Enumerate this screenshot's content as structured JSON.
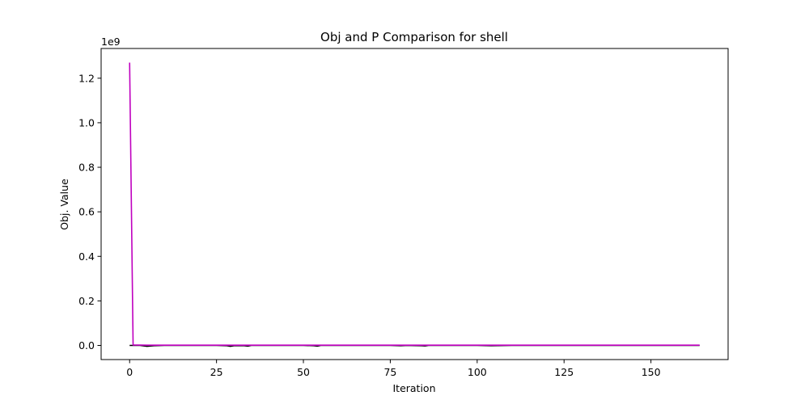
{
  "chart_data": {
    "type": "line",
    "title": "Obj and P Comparison for shell",
    "xlabel": "Iteration",
    "ylabel": "Obj. Value",
    "y_offset_label": "1e9",
    "xlim": [
      -8.2,
      172.2
    ],
    "ylim": [
      -0.0635,
      1.3335
    ],
    "x_ticks": [
      0,
      25,
      50,
      75,
      100,
      125,
      150
    ],
    "x_tick_labels": [
      "0",
      "25",
      "50",
      "75",
      "100",
      "125",
      "150"
    ],
    "y_ticks": [
      0.0,
      0.2,
      0.4,
      0.6,
      0.8,
      1.0,
      1.2
    ],
    "y_tick_labels": [
      "0.0",
      "0.2",
      "0.4",
      "0.6",
      "0.8",
      "1.0",
      "1.2"
    ],
    "grid": false,
    "series": [
      {
        "color": "#000000",
        "x": [
          0,
          1,
          3,
          5,
          7,
          10,
          15,
          20,
          25,
          28,
          29,
          30,
          33,
          34,
          35,
          40,
          45,
          50,
          53,
          54,
          55,
          60,
          65,
          70,
          75,
          78,
          80,
          84,
          85,
          86,
          90,
          95,
          100,
          104,
          110,
          120,
          130,
          140,
          150,
          160,
          164
        ],
        "y": [
          0,
          0,
          0,
          -0.004,
          -0.001,
          0,
          0,
          0,
          0,
          -0.001,
          -0.004,
          -0.001,
          -0.001,
          -0.003,
          0,
          0,
          0,
          0,
          -0.001,
          -0.003,
          0,
          0,
          0,
          0,
          0,
          -0.001,
          0,
          -0.001,
          -0.002,
          0,
          0,
          0,
          0,
          -0.001,
          0,
          0,
          0,
          0,
          0,
          0,
          0
        ]
      },
      {
        "color": "#bf00bf",
        "x": [
          0,
          1,
          5,
          10,
          20,
          40,
          60,
          80,
          100,
          120,
          140,
          160,
          164
        ],
        "y": [
          1.27,
          0.002,
          0.001,
          0.001,
          0.001,
          0.001,
          0.001,
          0.001,
          0.001,
          0.001,
          0.001,
          0.001,
          0.001
        ]
      }
    ]
  }
}
